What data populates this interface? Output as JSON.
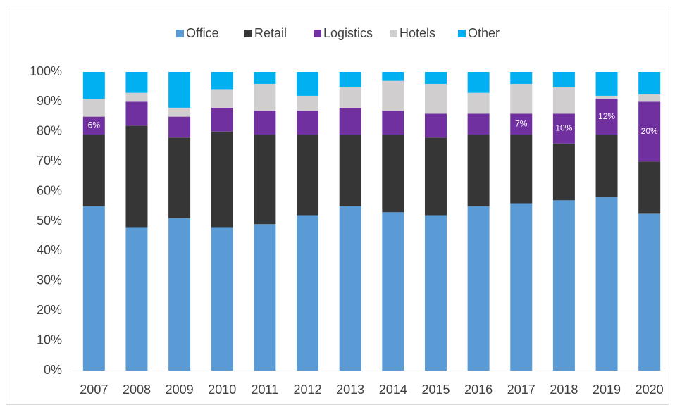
{
  "chart_data": {
    "type": "stacked_bar",
    "categories": [
      "2007",
      "2008",
      "2009",
      "2010",
      "2011",
      "2012",
      "2013",
      "2014",
      "2015",
      "2016",
      "2017",
      "2018",
      "2019",
      "2020"
    ],
    "series": [
      {
        "name": "Office",
        "color": "#5b9bd5",
        "values": [
          55,
          48,
          51,
          48,
          49,
          52,
          55,
          53,
          52,
          55,
          56,
          57,
          58,
          52.5
        ]
      },
      {
        "name": "Retail",
        "color": "#363636",
        "values": [
          24,
          34,
          27,
          32,
          30,
          27,
          24,
          26,
          26,
          24,
          23,
          19,
          21,
          17.5
        ]
      },
      {
        "name": "Logistics",
        "color": "#7030a0",
        "values": [
          6,
          8,
          7,
          8,
          8,
          8,
          9,
          8,
          8,
          7,
          7,
          10,
          12,
          20
        ],
        "value_labels": [
          "6%",
          null,
          null,
          null,
          null,
          null,
          null,
          null,
          null,
          null,
          "7%",
          "10%",
          "12%",
          "20%"
        ]
      },
      {
        "name": "Hotels",
        "color": "#d0cece",
        "values": [
          6,
          3,
          3,
          6,
          9,
          5,
          7,
          10,
          10,
          7,
          10,
          9,
          1,
          2.5
        ]
      },
      {
        "name": "Other",
        "color": "#00b0f0",
        "values": [
          9,
          7,
          12,
          6,
          4,
          8,
          5,
          3,
          4,
          7,
          4,
          5,
          8,
          7.5
        ]
      }
    ],
    "ylim": [
      0,
      100
    ],
    "yticks": [
      {
        "value": 0,
        "label": "0%"
      },
      {
        "value": 10,
        "label": "10%"
      },
      {
        "value": 20,
        "label": "20%"
      },
      {
        "value": 30,
        "label": "30%"
      },
      {
        "value": 40,
        "label": "40%"
      },
      {
        "value": 50,
        "label": "50%"
      },
      {
        "value": 60,
        "label": "60%"
      },
      {
        "value": 70,
        "label": "70%"
      },
      {
        "value": 80,
        "label": "80%"
      },
      {
        "value": 90,
        "label": "90%"
      },
      {
        "value": 100,
        "label": "100%"
      }
    ],
    "grid": false,
    "legend": "top"
  }
}
